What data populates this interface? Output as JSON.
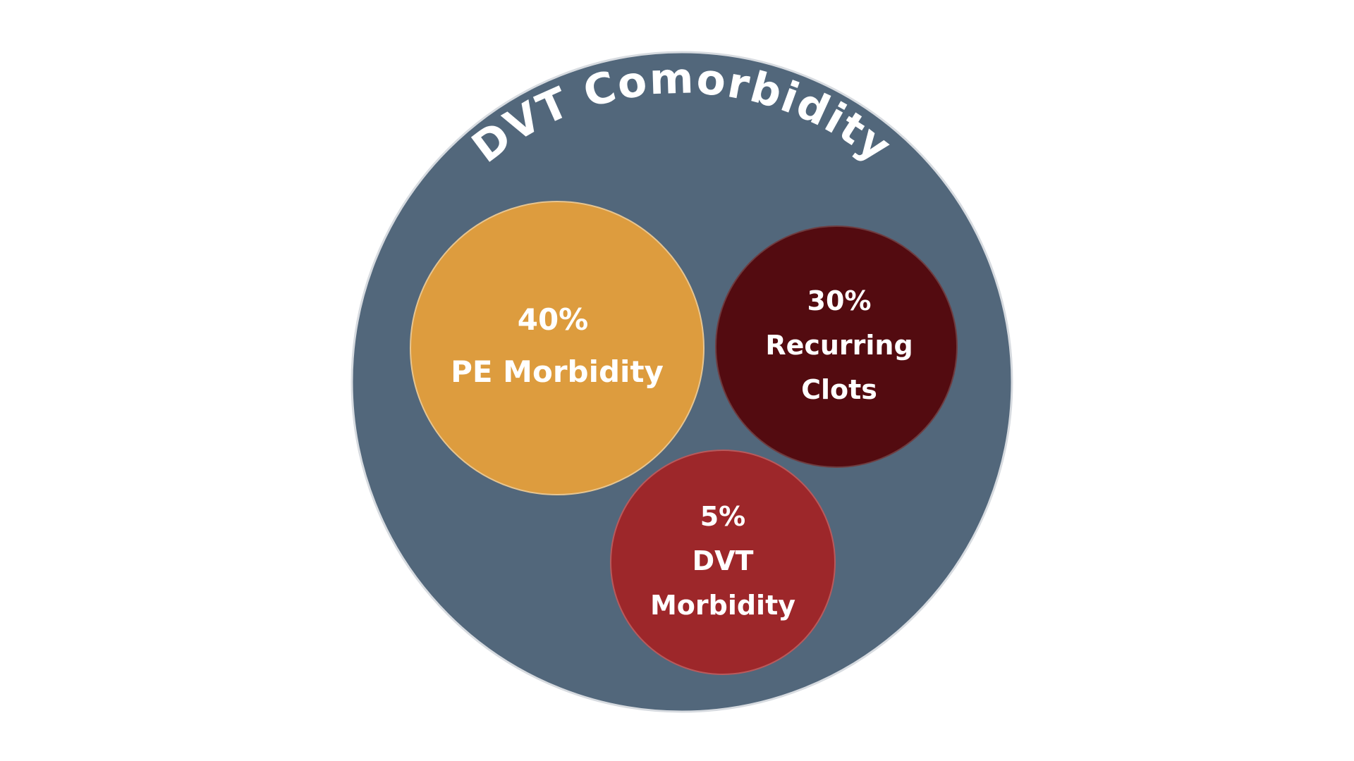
{
  "outer": {
    "title": "DVT Comorbidity",
    "color": "#52677b"
  },
  "bubbles": [
    {
      "id": "pe",
      "percent": "40%",
      "label_lines": [
        "PE Morbidity"
      ],
      "color": "#dd9c3e"
    },
    {
      "id": "recurring",
      "percent": "30%",
      "label_lines": [
        "Recurring",
        "Clots"
      ],
      "color": "#530b10"
    },
    {
      "id": "dvt",
      "percent": "5%",
      "label_lines": [
        "DVT",
        "Morbidity"
      ],
      "color": "#9d272a"
    }
  ]
}
